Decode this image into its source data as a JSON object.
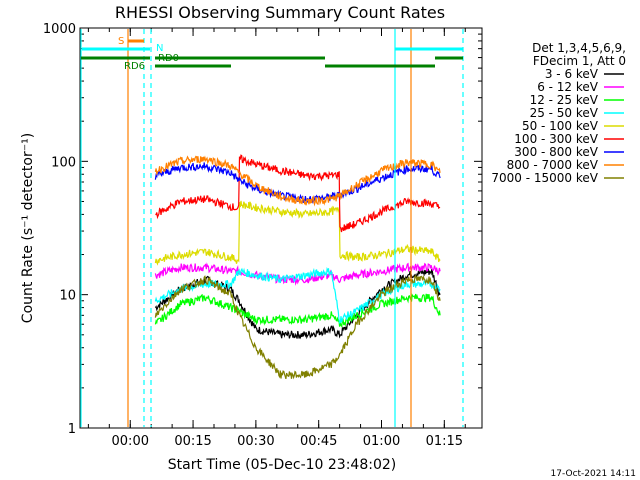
{
  "chart_data": {
    "type": "line",
    "title": "RHESSI Observing Summary Count Rates",
    "xlabel": "Start Time (05-Dec-10 23:48:02)",
    "ylabel": "Count Rate (s⁻¹ detector⁻¹)",
    "yscale": "log",
    "ylim": [
      1,
      1000
    ],
    "xlim_minutes": [
      -12,
      84
    ],
    "x_ticks": [
      {
        "minutes": 0,
        "label": "00:00"
      },
      {
        "minutes": 15,
        "label": "00:15"
      },
      {
        "minutes": 30,
        "label": "00:30"
      },
      {
        "minutes": 45,
        "label": "00:45"
      },
      {
        "minutes": 60,
        "label": "01:00"
      },
      {
        "minutes": 75,
        "label": "01:15"
      }
    ],
    "y_ticks": [
      {
        "value": 1,
        "label": "1"
      },
      {
        "value": 10,
        "label": "10"
      },
      {
        "value": 100,
        "label": "100"
      },
      {
        "value": 1000,
        "label": "1000"
      }
    ],
    "legend_title_lines": [
      "Det 1,3,4,5,6,9,",
      "FDecim 1, Att 0"
    ],
    "legend_position": "right",
    "series": [
      {
        "name": "3 - 6 keV",
        "color": "#000000",
        "x": [
          6,
          12,
          18,
          24,
          26,
          30,
          36,
          42,
          48,
          50,
          54,
          60,
          66,
          72,
          74
        ],
        "y": [
          8,
          11,
          13,
          11,
          9,
          5.5,
          5,
          5,
          5.5,
          5,
          7,
          11,
          14,
          15,
          10
        ]
      },
      {
        "name": "6 - 12 keV",
        "color": "#ff00ff",
        "x": [
          6,
          12,
          18,
          24,
          26,
          30,
          36,
          42,
          48,
          50,
          54,
          60,
          66,
          72,
          74
        ],
        "y": [
          14,
          16,
          16,
          15,
          15,
          14,
          13,
          13,
          14,
          13,
          14,
          15,
          16,
          16,
          15
        ]
      },
      {
        "name": "12 - 25 keV",
        "color": "#00ff00",
        "x": [
          6,
          12,
          18,
          24,
          26,
          30,
          36,
          42,
          48,
          50,
          54,
          60,
          66,
          72,
          74
        ],
        "y": [
          6,
          8.5,
          9.5,
          8,
          7.5,
          6.5,
          6.5,
          6.5,
          7,
          6,
          7,
          8.5,
          9.5,
          9.5,
          7
        ]
      },
      {
        "name": "25 - 50 keV",
        "color": "#00ffff",
        "x": [
          6,
          12,
          18,
          24,
          26,
          30,
          36,
          42,
          48,
          50,
          54,
          60,
          66,
          72,
          74
        ],
        "y": [
          9,
          11,
          12,
          12,
          15,
          14,
          13,
          14,
          15,
          6.5,
          7.5,
          10,
          12,
          12,
          11
        ]
      },
      {
        "name": "50 - 100 keV",
        "color": "#dcdc00",
        "x": [
          6,
          12,
          18,
          24,
          25.9,
          26.1,
          30,
          36,
          42,
          48,
          49.9,
          50.1,
          54,
          60,
          66,
          72,
          74
        ],
        "y": [
          18,
          20,
          21,
          19,
          18,
          48,
          45,
          42,
          40,
          42,
          43,
          20,
          19,
          20,
          22,
          21,
          18
        ]
      },
      {
        "name": "100 - 300 keV",
        "color": "#ff0000",
        "x": [
          6,
          12,
          18,
          24,
          25.9,
          26.1,
          30,
          36,
          42,
          48,
          49.9,
          50.1,
          54,
          60,
          66,
          72,
          74
        ],
        "y": [
          40,
          50,
          52,
          46,
          44,
          105,
          95,
          85,
          78,
          78,
          80,
          31,
          34,
          42,
          50,
          48,
          45
        ]
      },
      {
        "name": "300 - 800 keV",
        "color": "#0000ff",
        "x": [
          6,
          12,
          18,
          24,
          26,
          30,
          36,
          42,
          48,
          50,
          54,
          60,
          66,
          72,
          74
        ],
        "y": [
          78,
          90,
          92,
          82,
          72,
          62,
          55,
          52,
          54,
          56,
          62,
          75,
          88,
          88,
          75
        ]
      },
      {
        "name": "800 - 7000 keV",
        "color": "#ff8000",
        "x": [
          6,
          12,
          18,
          24,
          26,
          30,
          36,
          42,
          48,
          50,
          54,
          60,
          66,
          72,
          74
        ],
        "y": [
          85,
          100,
          105,
          92,
          82,
          66,
          54,
          50,
          52,
          55,
          66,
          85,
          98,
          95,
          82
        ]
      },
      {
        "name": "7000 - 15000 keV",
        "color": "#808000",
        "x": [
          6,
          12,
          18,
          24,
          26,
          30,
          36,
          42,
          48,
          50,
          54,
          60,
          66,
          72,
          74
        ],
        "y": [
          7,
          11,
          13,
          10,
          7,
          4,
          2.5,
          2.5,
          3,
          3.5,
          6,
          10,
          13,
          13,
          9
        ]
      }
    ],
    "flag_labels": [
      {
        "text": "S",
        "color": "#ff8000"
      },
      {
        "text": "N",
        "color": "#00ffff"
      },
      {
        "text": "RD0",
        "color": "#008000"
      },
      {
        "text": "RD6",
        "color": "#008000"
      }
    ],
    "footer_date": "17-Oct-2021 14:11"
  }
}
